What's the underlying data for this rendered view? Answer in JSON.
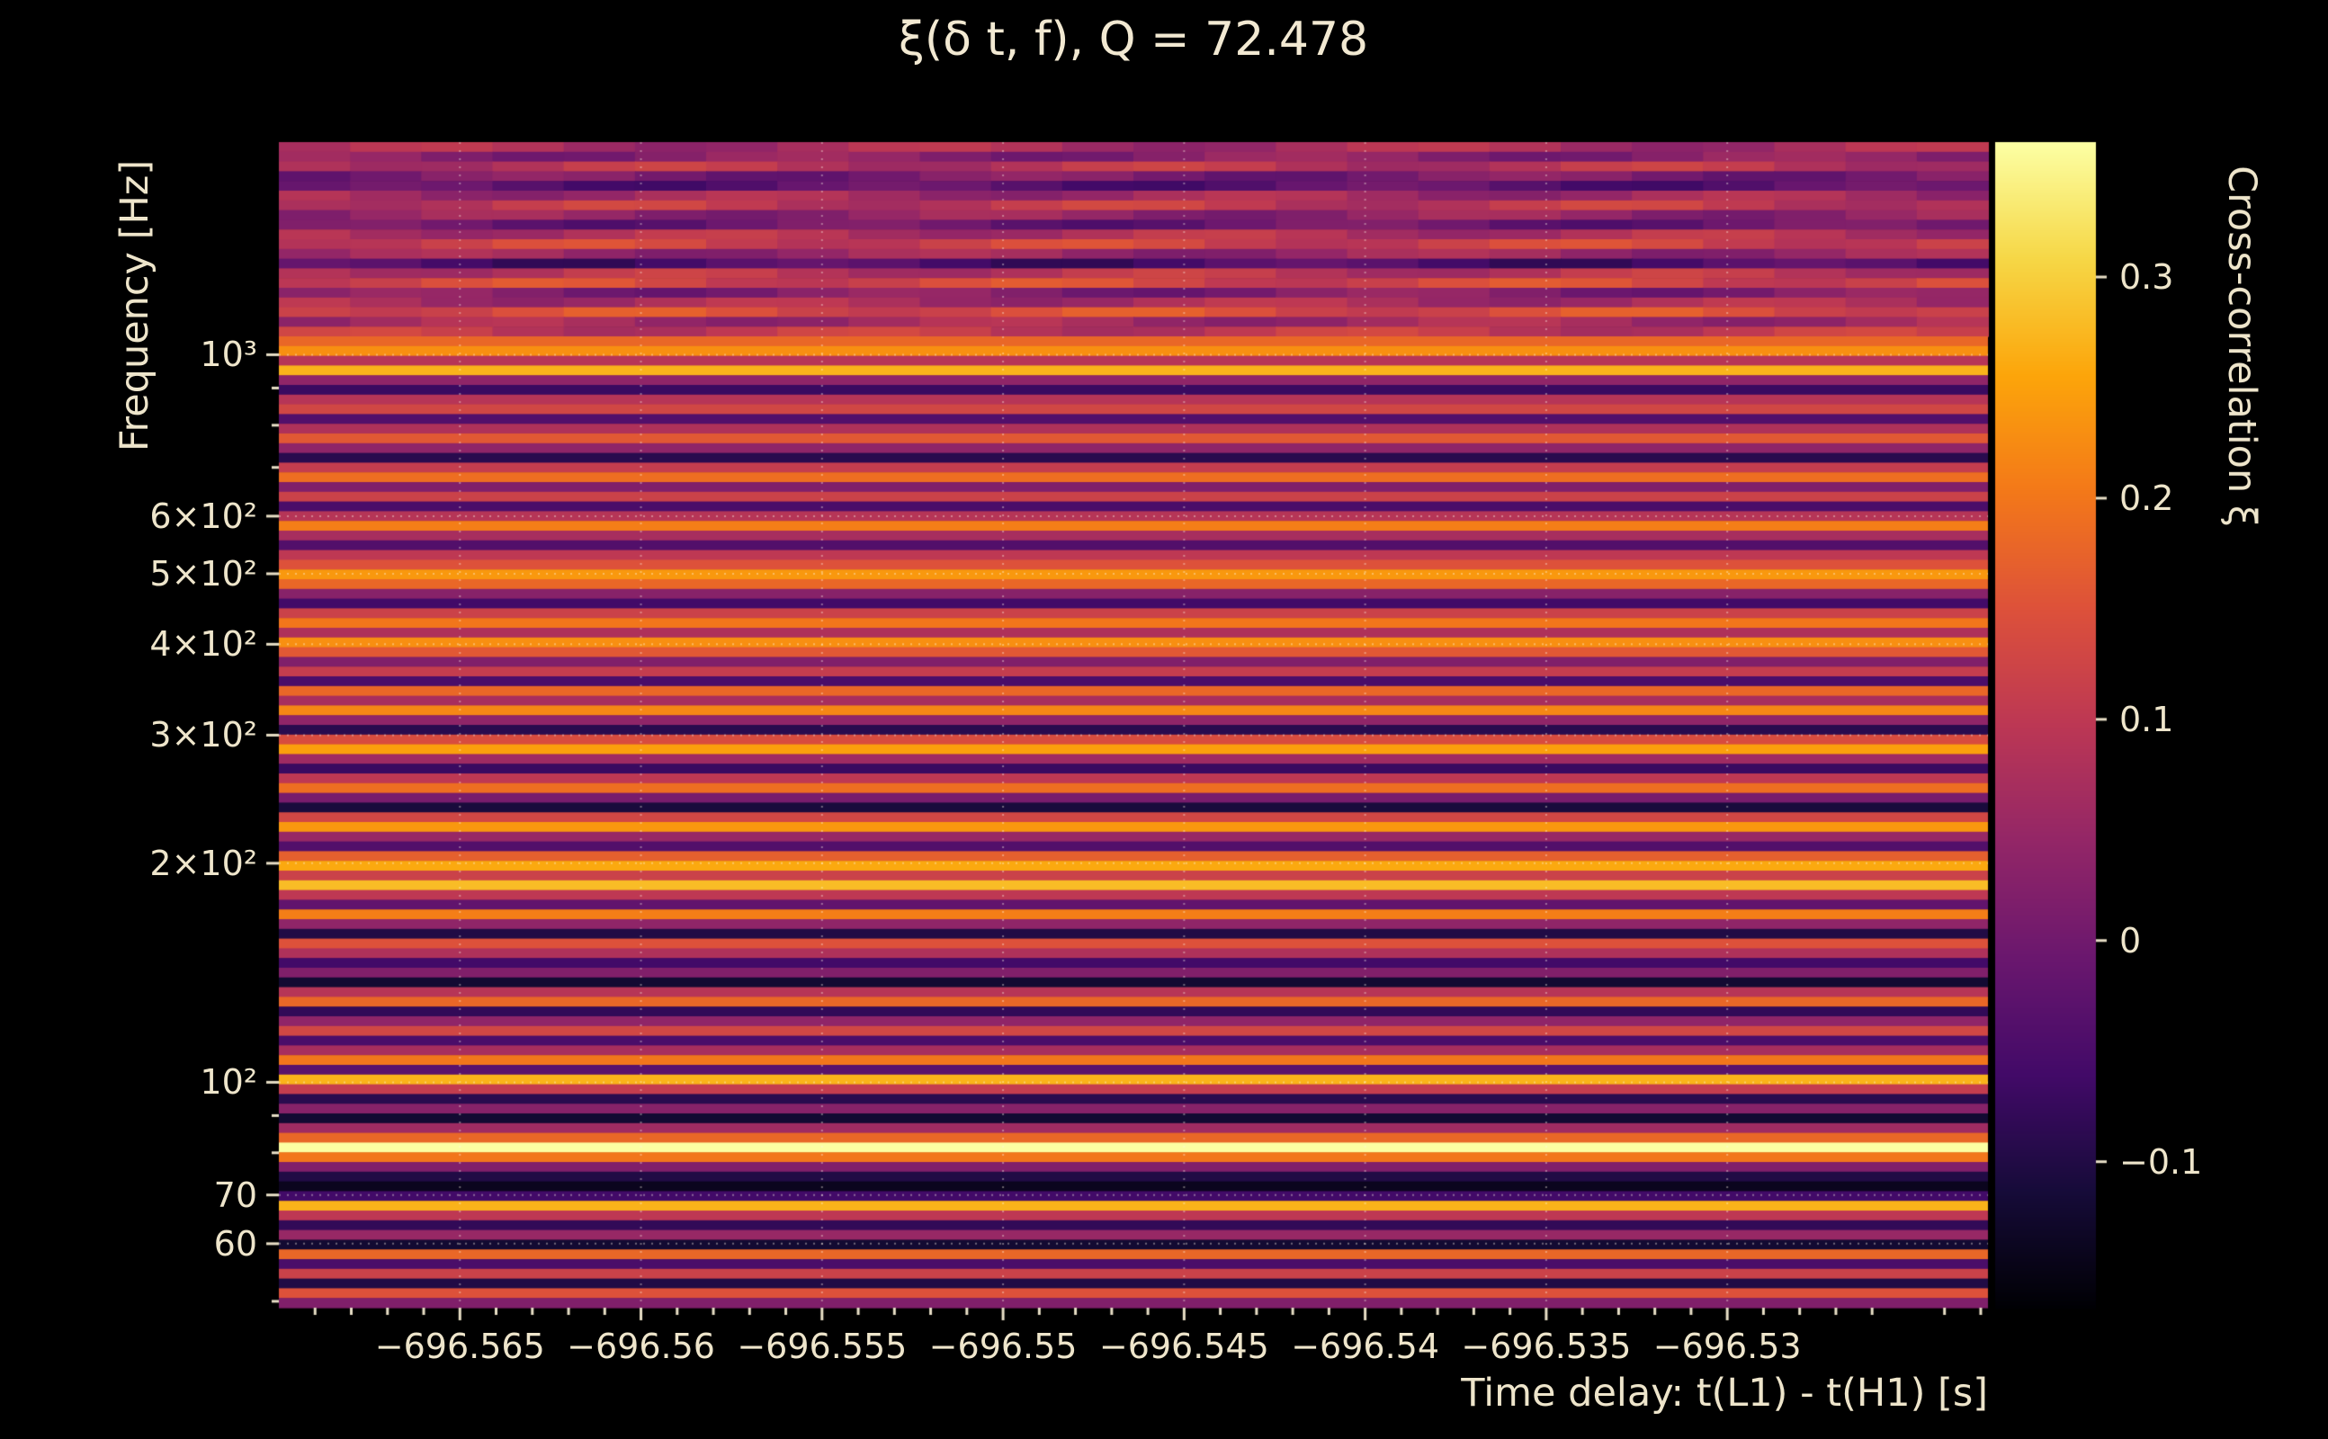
{
  "figure": {
    "background": "#000000",
    "text_color": "#eee5cb",
    "tick_color": "#e8dfc6"
  },
  "chart_data": {
    "type": "heatmap",
    "title": "ξ(δ t, f), Q = 72.478",
    "xlabel": "Time delay: t(L1) - t(H1) [s]",
    "ylabel": "Frequency [Hz]",
    "colorbar_label": "Cross-correlation ξ",
    "colormap": "inferno",
    "grid": {
      "enabled": true,
      "color": "#fff8e8",
      "style": "dotted",
      "alpha": 0.4
    },
    "x_axis": {
      "min": -696.57,
      "max": -696.5228,
      "minor_step": 0.001,
      "ticks": [
        {
          "v": -696.565,
          "label": "−696.565"
        },
        {
          "v": -696.56,
          "label": "−696.56"
        },
        {
          "v": -696.555,
          "label": "−696.555"
        },
        {
          "v": -696.55,
          "label": "−696.55"
        },
        {
          "v": -696.545,
          "label": "−696.545"
        },
        {
          "v": -696.54,
          "label": "−696.54"
        },
        {
          "v": -696.535,
          "label": "−696.535"
        },
        {
          "v": -696.53,
          "label": "−696.53"
        }
      ]
    },
    "y_axis": {
      "scale": "log",
      "min": 49,
      "max": 1960,
      "ticks": [
        {
          "v": 1000,
          "label": "10³"
        },
        {
          "v": 600,
          "label": "6×10²"
        },
        {
          "v": 500,
          "label": "5×10²"
        },
        {
          "v": 400,
          "label": "4×10²"
        },
        {
          "v": 300,
          "label": "3×10²"
        },
        {
          "v": 200,
          "label": "2×10²"
        },
        {
          "v": 100,
          "label": "10²"
        },
        {
          "v": 70,
          "label": "70"
        },
        {
          "v": 60,
          "label": "60"
        }
      ],
      "minor_ticks": [
        50,
        80,
        90,
        700,
        800,
        900
      ]
    },
    "colorbar": {
      "min": -0.166,
      "max": 0.361,
      "ticks": [
        {
          "v": 0.3,
          "label": "0.3"
        },
        {
          "v": 0.2,
          "label": "0.2"
        },
        {
          "v": 0.1,
          "label": "0.1"
        },
        {
          "v": 0,
          "label": "0"
        },
        {
          "v": -0.1,
          "label": "−0.1"
        }
      ]
    },
    "heatmap_rows": {
      "order": "top-to-bottom",
      "f_top_hz": 1960,
      "f_bottom_hz": 49,
      "top_mottle": {
        "rows": 20,
        "amplitude": 0.035
      },
      "values": [
        0.07,
        0.03,
        0.09,
        0.01,
        -0.03,
        0.06,
        0.1,
        0.04,
        -0.01,
        0.08,
        0.12,
        0.05,
        -0.05,
        0.09,
        0.13,
        0.02,
        0.07,
        0.14,
        0.06,
        0.1,
        0.18,
        0.23,
        0.09,
        0.27,
        0.04,
        -0.07,
        0.09,
        0.13,
        -0.04,
        0.08,
        0.16,
        0.04,
        -0.09,
        0.11,
        0.19,
        0.02,
        0.12,
        -0.05,
        0.09,
        0.21,
        0.07,
        -0.04,
        0.1,
        0.15,
        0.24,
        0.18,
        0.03,
        -0.06,
        0.12,
        0.2,
        0.08,
        0.23,
        0.16,
        0.02,
        0.11,
        -0.05,
        0.18,
        0.07,
        0.22,
        0.04,
        -0.09,
        0.14,
        0.25,
        0.06,
        -0.07,
        0.1,
        0.19,
        0.01,
        -0.11,
        0.13,
        0.24,
        0.05,
        -0.04,
        0.17,
        0.26,
        0.12,
        0.28,
        0.1,
        -0.02,
        0.21,
        0.04,
        -0.1,
        0.15,
        0.08,
        -0.06,
        0.02,
        -0.12,
        0.09,
        0.18,
        -0.08,
        0.04,
        0.13,
        -0.05,
        0.07,
        0.2,
        -0.03,
        0.27,
        0.11,
        -0.09,
        0.03,
        -0.12,
        0.06,
        0.18,
        0.36,
        0.2,
        0.02,
        -0.1,
        -0.14,
        -0.06,
        0.27,
        0.1,
        -0.08,
        0.05,
        -0.12,
        0.18,
        -0.05,
        0.12,
        -0.1,
        0.15,
        0.02
      ]
    }
  }
}
